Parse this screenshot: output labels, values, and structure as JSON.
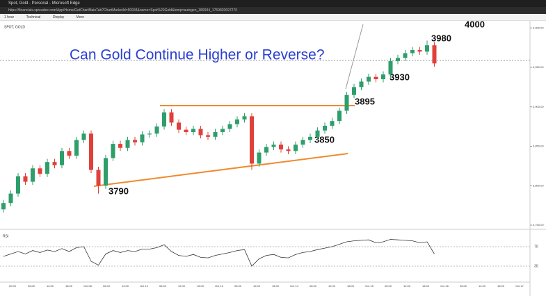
{
  "window_title": "Spot, Gold - Personal - Microsoft Edge",
  "url": "https://financials.spreadex.com/App/Home/GetChartMainTab?ChartMarketId=50934&name=Spot%20Gold&temp=autogen_389934_1759820697270",
  "toolbar": [
    "1 hour",
    "Technical",
    "Display",
    "More"
  ],
  "chart_data": {
    "type": "candlestick",
    "symbol": "SPOT, GOLD",
    "title": "Can Gold Continue Higher or Reverse?",
    "annotations": [
      "4000",
      "3980",
      "3930",
      "3895",
      "3850",
      "3790"
    ],
    "up_color": "#2e9e6a",
    "down_color": "#e0403a",
    "open": [
      3770,
      3778,
      3790,
      3812,
      3805,
      3822,
      3815,
      3830,
      3826,
      3844,
      3838,
      3858,
      3866,
      3820,
      3800,
      3835,
      3853,
      3848,
      3858,
      3855,
      3865,
      3866,
      3875,
      3893,
      3880,
      3871,
      3868,
      3872,
      3864,
      3862,
      3868,
      3872,
      3878,
      3884,
      3888,
      3828,
      3842,
      3849,
      3852,
      3846,
      3844,
      3852,
      3858,
      3862,
      3870,
      3876,
      3882,
      3895,
      3915,
      3925,
      3932,
      3938,
      3935,
      3941,
      3958,
      3962,
      3968,
      3972,
      3970,
      3978
    ],
    "high": [
      3782,
      3794,
      3816,
      3816,
      3826,
      3826,
      3834,
      3834,
      3848,
      3848,
      3862,
      3870,
      3870,
      3824,
      3839,
      3857,
      3857,
      3862,
      3862,
      3869,
      3870,
      3879,
      3897,
      3897,
      3884,
      3875,
      3876,
      3876,
      3868,
      3872,
      3876,
      3882,
      3888,
      3892,
      3892,
      3846,
      3853,
      3856,
      3856,
      3850,
      3856,
      3862,
      3866,
      3874,
      3880,
      3886,
      3899,
      3919,
      3929,
      3936,
      3942,
      3942,
      3945,
      3962,
      3966,
      3972,
      3976,
      3976,
      3984,
      3982
    ],
    "low": [
      3766,
      3774,
      3786,
      3801,
      3801,
      3811,
      3811,
      3822,
      3822,
      3834,
      3834,
      3854,
      3816,
      3790,
      3796,
      3831,
      3844,
      3844,
      3851,
      3851,
      3861,
      3862,
      3871,
      3876,
      3867,
      3864,
      3864,
      3860,
      3858,
      3858,
      3864,
      3868,
      3874,
      3880,
      3820,
      3824,
      3838,
      3845,
      3842,
      3840,
      3840,
      3848,
      3854,
      3858,
      3866,
      3872,
      3878,
      3891,
      3911,
      3921,
      3928,
      3931,
      3931,
      3937,
      3954,
      3958,
      3964,
      3966,
      3966,
      3951
    ],
    "close": [
      3778,
      3790,
      3812,
      3805,
      3822,
      3815,
      3830,
      3826,
      3844,
      3838,
      3858,
      3866,
      3820,
      3800,
      3835,
      3853,
      3848,
      3858,
      3855,
      3865,
      3866,
      3875,
      3893,
      3880,
      3871,
      3868,
      3872,
      3864,
      3862,
      3868,
      3872,
      3878,
      3884,
      3888,
      3828,
      3842,
      3849,
      3852,
      3846,
      3844,
      3852,
      3858,
      3862,
      3870,
      3876,
      3882,
      3895,
      3915,
      3925,
      3932,
      3938,
      3935,
      3941,
      3958,
      3962,
      3968,
      3972,
      3970,
      3978,
      3955
    ],
    "ylim": [
      3750,
      4009
    ],
    "yticks": [
      {
        "value": 3750,
        "label": "3,750.00"
      },
      {
        "value": 3800,
        "label": "3,800.00"
      },
      {
        "value": 3850,
        "label": "3,850.00"
      },
      {
        "value": 3900,
        "label": "3,900.00"
      },
      {
        "value": 3950,
        "label": "3,950.00"
      },
      {
        "value": 4000,
        "label": "4,000.00"
      }
    ],
    "xtick_labels": [
      "00:00",
      "06:00",
      "12:00",
      "18:00",
      "Oct 08",
      "06:00",
      "12:00",
      "Oct 12",
      "06:00",
      "12:00",
      "18:00",
      "Oct 13",
      "06:00",
      "12:00",
      "18:00",
      "Oct 14",
      "06:00",
      "12:00",
      "18:00",
      "Oct 15",
      "06:00",
      "12:00",
      "18:00",
      "Oct 16",
      "06:00",
      "12:00",
      "18:00",
      "Oct 17"
    ],
    "indicator": {
      "name": "RSI",
      "color": "#333333",
      "ylim": [
        0,
        100
      ],
      "yticks": [
        30,
        70
      ],
      "values": [
        50,
        55,
        60,
        55,
        62,
        58,
        63,
        60,
        66,
        60,
        68,
        70,
        40,
        32,
        55,
        62,
        58,
        62,
        60,
        65,
        65,
        68,
        74,
        60,
        52,
        50,
        54,
        48,
        47,
        52,
        55,
        58,
        62,
        64,
        30,
        45,
        52,
        54,
        48,
        47,
        54,
        58,
        60,
        64,
        67,
        70,
        75,
        80,
        82,
        83,
        84,
        78,
        80,
        85,
        84,
        83,
        82,
        78,
        80,
        55
      ]
    }
  }
}
